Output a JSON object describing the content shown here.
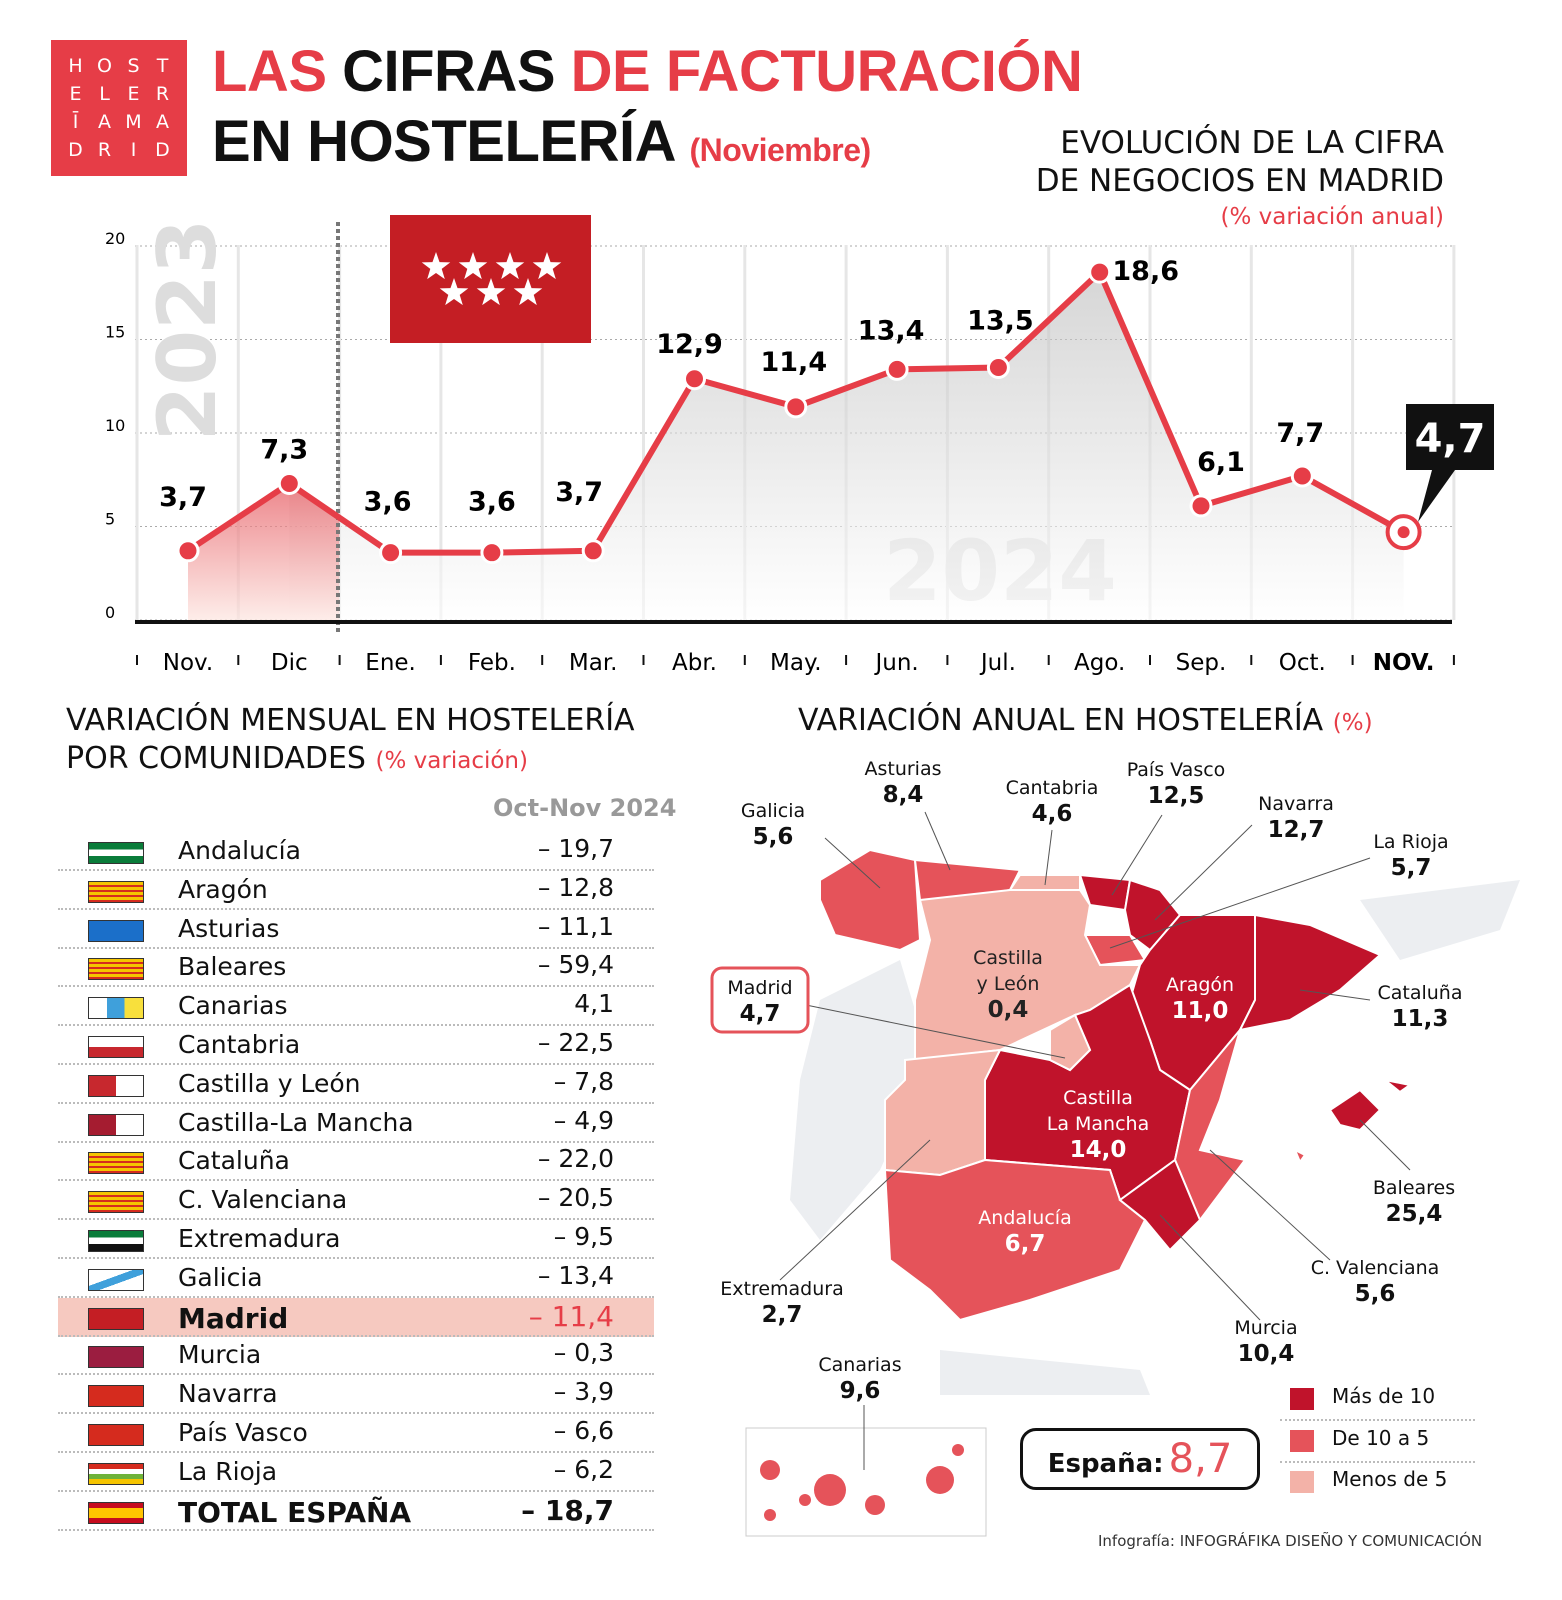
{
  "logo": {
    "letters": [
      "H",
      "O",
      "S",
      "T",
      "E",
      "L",
      "E",
      "R",
      "Ī",
      "A",
      "M",
      "A",
      "D",
      "R",
      "I",
      "D"
    ]
  },
  "title": {
    "line1_red": "LAS",
    "line1_black": "CIFRAS",
    "line1_red2": "DE FACTURACIÓN",
    "line2": "EN HOSTELERÍA",
    "month": "(Noviembre)"
  },
  "colors": {
    "accent": "#e63d47",
    "dark": "#c0132b",
    "mid": "#e5535a",
    "light": "#f3b2a8"
  },
  "chart_data": {
    "type": "line",
    "title": "EVOLUCIÓN DE LA CIFRA DE NEGOCIOS EN MADRID",
    "title_line1": "EVOLUCIÓN DE LA CIFRA",
    "title_line2": "DE NEGOCIOS EN MADRID",
    "subtitle": "(% variación anual)",
    "categories": [
      "Nov.",
      "Dic",
      "Ene.",
      "Feb.",
      "Mar.",
      "Abr.",
      "May.",
      "Jun.",
      "Jul.",
      "Ago.",
      "Sep.",
      "Oct.",
      "NOV."
    ],
    "labels": [
      "3,7",
      "7,3",
      "3,6",
      "3,6",
      "3,7",
      "12,9",
      "11,4",
      "13,4",
      "13,5",
      "18,6",
      "6,1",
      "7,7",
      "4,7"
    ],
    "values": [
      3.7,
      7.3,
      3.6,
      3.6,
      3.7,
      12.9,
      11.4,
      13.4,
      13.5,
      18.6,
      6.1,
      7.7,
      4.7
    ],
    "yticks": [
      "0",
      "5",
      "10",
      "15",
      "20"
    ],
    "ylim": [
      0,
      20
    ],
    "year_labels": [
      "2023",
      "2024"
    ],
    "grid": true
  },
  "monthly": {
    "title_line1": "VARIACIÓN MENSUAL EN HOSTELERÍA",
    "title_line2": "POR COMUNIDADES",
    "title_note": "(% variación)",
    "column": "Oct-Nov 2024",
    "rows": [
      {
        "name": "Andalucía",
        "value": "– 19,7"
      },
      {
        "name": "Aragón",
        "value": "– 12,8"
      },
      {
        "name": "Asturias",
        "value": "– 11,1"
      },
      {
        "name": "Baleares",
        "value": "– 59,4"
      },
      {
        "name": "Canarias",
        "value": "4,1"
      },
      {
        "name": "Cantabria",
        "value": "– 22,5"
      },
      {
        "name": "Castilla y León",
        "value": "– 7,8"
      },
      {
        "name": "Castilla-La Mancha",
        "value": "– 4,9"
      },
      {
        "name": "Cataluña",
        "value": "– 22,0"
      },
      {
        "name": "C. Valenciana",
        "value": "– 20,5"
      },
      {
        "name": "Extremadura",
        "value": "– 9,5"
      },
      {
        "name": "Galicia",
        "value": "– 13,4"
      },
      {
        "name": "Madrid",
        "value": "– 11,4"
      },
      {
        "name": "Murcia",
        "value": "– 0,3"
      },
      {
        "name": "Navarra",
        "value": "– 3,9"
      },
      {
        "name": "País Vasco",
        "value": "– 6,6"
      },
      {
        "name": "La Rioja",
        "value": "– 6,2"
      },
      {
        "name": "TOTAL ESPAÑA",
        "value": "– 18,7"
      }
    ]
  },
  "annual": {
    "title": "VARIACIÓN ANUAL EN HOSTELERÍA",
    "unit": "(%)",
    "regions": {
      "galicia": {
        "name": "Galicia",
        "value": "5,6"
      },
      "asturias": {
        "name": "Asturias",
        "value": "8,4"
      },
      "cantabria": {
        "name": "Cantabria",
        "value": "4,6"
      },
      "pvasco": {
        "name": "País Vasco",
        "value": "12,5"
      },
      "navarra": {
        "name": "Navarra",
        "value": "12,7"
      },
      "rioja": {
        "name": "La Rioja",
        "value": "5,7"
      },
      "cyl": {
        "name1": "Castilla",
        "name2": "y León",
        "value": "0,4"
      },
      "madrid": {
        "name": "Madrid",
        "value": "4,7"
      },
      "aragon": {
        "name": "Aragón",
        "value": "11,0"
      },
      "cataluna": {
        "name": "Cataluña",
        "value": "11,3"
      },
      "clm": {
        "name1": "Castilla",
        "name2": "La Mancha",
        "value": "14,0"
      },
      "baleares": {
        "name": "Baleares",
        "value": "25,4"
      },
      "valencia": {
        "name": "C. Valenciana",
        "value": "5,6"
      },
      "andalucia": {
        "name": "Andalucía",
        "value": "6,7"
      },
      "extremadura": {
        "name": "Extremadura",
        "value": "2,7"
      },
      "murcia": {
        "name": "Murcia",
        "value": "10,4"
      },
      "canarias": {
        "name": "Canarias",
        "value": "9,6"
      }
    },
    "espana_label": "España:",
    "espana_value": "8,7",
    "legend": [
      {
        "label": "Más de 10",
        "color": "#c0132b"
      },
      {
        "label": "De 10 a 5",
        "color": "#e5535a"
      },
      {
        "label": "Menos de 5",
        "color": "#f3b2a8"
      }
    ]
  },
  "credit": {
    "prefix": "Infografía:",
    "name": "INFOGRÁFIKA DISEÑO Y COMUNICACIÓN"
  }
}
